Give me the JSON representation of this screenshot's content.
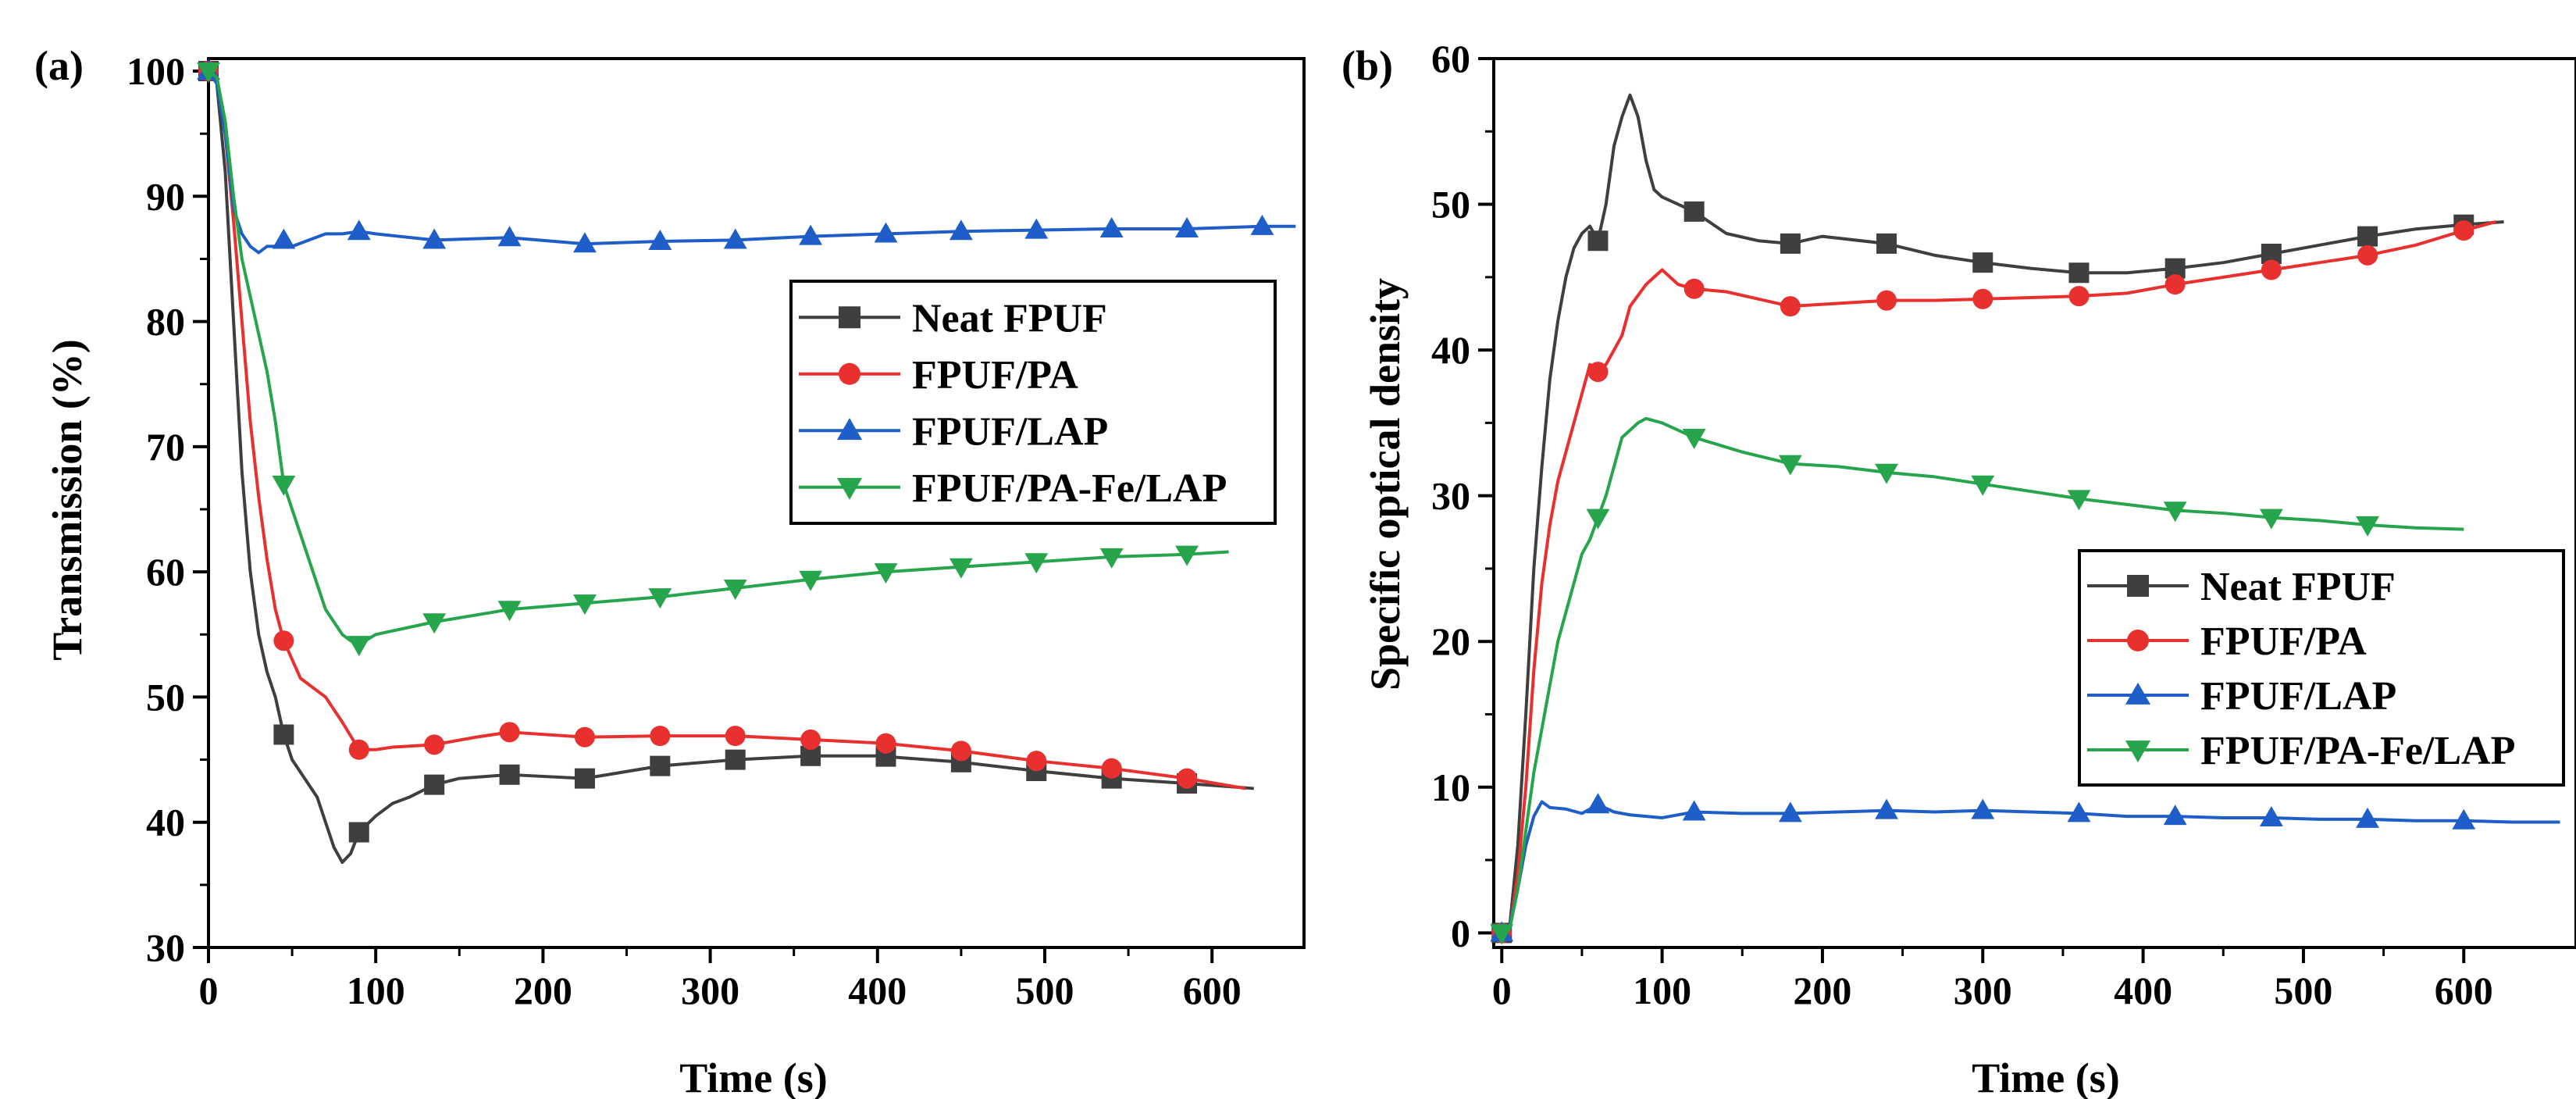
{
  "chart_data": [
    {
      "type": "line",
      "panel_label": "(a)",
      "xlabel": "Time (s)",
      "ylabel": "Transmission (%)",
      "xlim": [
        0,
        655
      ],
      "ylim": [
        30,
        101
      ],
      "xticks": [
        0,
        100,
        200,
        300,
        400,
        500,
        600
      ],
      "yticks": [
        30,
        40,
        50,
        60,
        70,
        80,
        90,
        100
      ],
      "legend_position": "center-right",
      "series": [
        {
          "name": "Neat FPUF",
          "color": "#3f3f3f",
          "marker": "square",
          "x": [
            0,
            5,
            10,
            15,
            20,
            25,
            30,
            35,
            40,
            45,
            50,
            55,
            60,
            65,
            70,
            75,
            80,
            85,
            90,
            100,
            110,
            120,
            135,
            150,
            180,
            225,
            270,
            315,
            360,
            400,
            450,
            495,
            540,
            585,
            625
          ],
          "y": [
            100,
            99,
            92,
            80,
            68,
            60,
            55,
            52,
            50,
            47,
            45,
            44,
            43,
            42,
            40,
            38,
            36.8,
            37.5,
            39.2,
            40.5,
            41.5,
            42,
            43,
            43.5,
            43.8,
            43.5,
            44.5,
            45,
            45.3,
            45.3,
            44.8,
            44.1,
            43.5,
            43.1,
            42.7
          ]
        },
        {
          "name": "FPUF/PA",
          "color": "#e8302f",
          "marker": "circle",
          "x": [
            0,
            5,
            10,
            15,
            20,
            25,
            30,
            35,
            40,
            45,
            50,
            55,
            60,
            65,
            70,
            75,
            80,
            90,
            100,
            110,
            135,
            160,
            180,
            225,
            270,
            315,
            360,
            405,
            450,
            495,
            540,
            585,
            620
          ],
          "y": [
            100,
            99.5,
            95,
            88,
            80,
            72,
            66,
            61,
            57,
            54.5,
            53,
            51.5,
            51,
            50.5,
            50,
            49,
            48,
            45.8,
            45.8,
            46,
            46.2,
            46.8,
            47.2,
            46.8,
            46.9,
            46.9,
            46.6,
            46.3,
            45.7,
            44.9,
            44.3,
            43.5,
            42.7
          ]
        },
        {
          "name": "FPUF/LAP",
          "color": "#1f5ec9",
          "marker": "triangle-up",
          "x": [
            0,
            5,
            10,
            15,
            20,
            25,
            30,
            35,
            40,
            45,
            50,
            60,
            70,
            80,
            90,
            100,
            135,
            180,
            225,
            270,
            315,
            360,
            405,
            450,
            495,
            540,
            585,
            630,
            650
          ],
          "y": [
            100,
            99,
            95,
            89,
            87,
            86,
            85.5,
            86,
            86,
            86.5,
            86,
            86.5,
            87,
            87,
            87.2,
            87,
            86.5,
            86.7,
            86.2,
            86.4,
            86.5,
            86.8,
            87,
            87.2,
            87.3,
            87.4,
            87.4,
            87.6,
            87.6
          ]
        },
        {
          "name": "FPUF/PA-Fe/LAP",
          "color": "#27a54c",
          "marker": "triangle-down",
          "x": [
            0,
            5,
            10,
            15,
            20,
            25,
            30,
            35,
            40,
            45,
            50,
            55,
            60,
            65,
            70,
            75,
            80,
            85,
            90,
            100,
            135,
            180,
            225,
            270,
            315,
            360,
            405,
            450,
            495,
            540,
            585,
            610
          ],
          "y": [
            100,
            99.5,
            96,
            90,
            85,
            82,
            79,
            76,
            72,
            67,
            65,
            63,
            61,
            59,
            57,
            56,
            55,
            54.5,
            54.2,
            55,
            56,
            57,
            57.5,
            58,
            58.7,
            59.4,
            60,
            60.4,
            60.8,
            61.2,
            61.4,
            61.6
          ]
        }
      ]
    },
    {
      "type": "line",
      "panel_label": "(b)",
      "xlabel": "Time (s)",
      "ylabel": "Specific optical density",
      "xlim": [
        -5,
        670
      ],
      "ylim": [
        -1,
        60
      ],
      "xticks": [
        0,
        100,
        200,
        300,
        400,
        500,
        600
      ],
      "yticks": [
        0,
        10,
        20,
        30,
        40,
        50,
        60
      ],
      "legend_position": "center-right",
      "series": [
        {
          "name": "Neat FPUF",
          "color": "#3f3f3f",
          "marker": "square",
          "x": [
            0,
            5,
            10,
            15,
            20,
            25,
            30,
            35,
            40,
            45,
            50,
            55,
            60,
            65,
            70,
            75,
            80,
            85,
            90,
            95,
            100,
            110,
            120,
            140,
            160,
            180,
            200,
            240,
            270,
            300,
            330,
            360,
            390,
            420,
            450,
            480,
            510,
            540,
            570,
            600,
            625
          ],
          "y": [
            0,
            0.5,
            6,
            15,
            25,
            32,
            38,
            42,
            45,
            47,
            48,
            48.5,
            47.5,
            50,
            54,
            56,
            57.5,
            56,
            53,
            51,
            50.5,
            50,
            49.5,
            48,
            47.5,
            47.3,
            47.8,
            47.3,
            46.5,
            46,
            45.6,
            45.3,
            45.3,
            45.6,
            46,
            46.6,
            47.2,
            47.8,
            48.3,
            48.6,
            48.8
          ]
        },
        {
          "name": "FPUF/PA",
          "color": "#e8302f",
          "marker": "circle",
          "x": [
            0,
            5,
            10,
            15,
            20,
            25,
            30,
            35,
            40,
            45,
            50,
            55,
            60,
            65,
            70,
            75,
            80,
            90,
            100,
            110,
            120,
            140,
            160,
            180,
            210,
            240,
            270,
            300,
            330,
            360,
            390,
            420,
            450,
            480,
            510,
            540,
            570,
            600,
            620
          ],
          "y": [
            0,
            0.3,
            4,
            10,
            18,
            24,
            28,
            31,
            33,
            35,
            37,
            39,
            38.5,
            39,
            40,
            41,
            43,
            44.5,
            45.5,
            44.5,
            44.2,
            44,
            43.5,
            43,
            43.2,
            43.4,
            43.4,
            43.5,
            43.6,
            43.7,
            43.9,
            44.5,
            45,
            45.5,
            46,
            46.5,
            47.2,
            48.2,
            48.8
          ]
        },
        {
          "name": "FPUF/LAP",
          "color": "#1f5ec9",
          "marker": "triangle-up",
          "x": [
            0,
            5,
            10,
            15,
            20,
            25,
            30,
            40,
            50,
            60,
            70,
            80,
            90,
            100,
            120,
            150,
            180,
            210,
            240,
            270,
            300,
            330,
            360,
            390,
            420,
            450,
            480,
            510,
            540,
            570,
            600,
            630,
            660
          ],
          "y": [
            0,
            0.5,
            3,
            6,
            8,
            9,
            8.6,
            8.5,
            8.2,
            8.8,
            8.3,
            8.1,
            8,
            7.9,
            8.3,
            8.2,
            8.2,
            8.3,
            8.4,
            8.3,
            8.4,
            8.3,
            8.2,
            8,
            8,
            7.9,
            7.9,
            7.8,
            7.8,
            7.7,
            7.7,
            7.6,
            7.6
          ]
        },
        {
          "name": "FPUF/PA-Fe/LAP",
          "color": "#27a54c",
          "marker": "triangle-down",
          "x": [
            0,
            5,
            10,
            15,
            20,
            25,
            30,
            35,
            40,
            45,
            50,
            55,
            60,
            65,
            70,
            75,
            80,
            85,
            90,
            100,
            120,
            150,
            180,
            210,
            240,
            270,
            300,
            330,
            360,
            390,
            420,
            450,
            480,
            510,
            540,
            570,
            600
          ],
          "y": [
            0,
            0.3,
            3,
            7,
            11,
            14,
            17,
            20,
            22,
            24,
            26,
            27,
            28.5,
            30,
            32,
            34,
            34.5,
            35,
            35.3,
            35,
            34,
            33,
            32.2,
            32,
            31.6,
            31.3,
            30.8,
            30.3,
            29.8,
            29.4,
            29,
            28.8,
            28.5,
            28.3,
            28,
            27.8,
            27.7
          ]
        }
      ]
    }
  ]
}
